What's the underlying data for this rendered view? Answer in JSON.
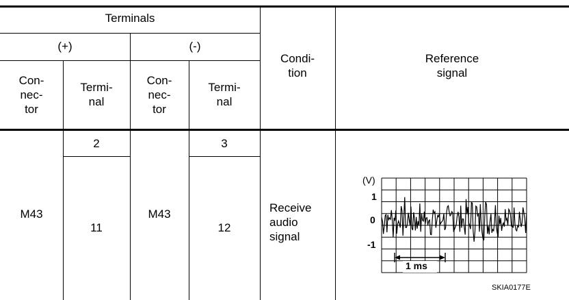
{
  "header": {
    "terminals": "Terminals",
    "plus": "(+)",
    "minus": "(-)",
    "connector_plus": "Con-\nnec-\ntor",
    "terminal_plus": "Termi-\nnal",
    "connector_minus": "Con-\nnec-\ntor",
    "terminal_minus": "Termi-\nnal",
    "condition": "Condi-\ntion",
    "reference_signal": "Reference\nsignal"
  },
  "row": {
    "connector_plus": "M43",
    "terminal_plus_top": "2",
    "terminal_plus_bottom": "11",
    "connector_minus": "M43",
    "terminal_minus_top": "3",
    "terminal_minus_bottom": "12",
    "condition": "Receive\naudio\nsignal"
  },
  "signal": {
    "unit": "(V)",
    "y_labels": [
      "1",
      "0",
      "-1"
    ],
    "time_scale": "1 ms",
    "figure_id": "SKIA0177E"
  }
}
